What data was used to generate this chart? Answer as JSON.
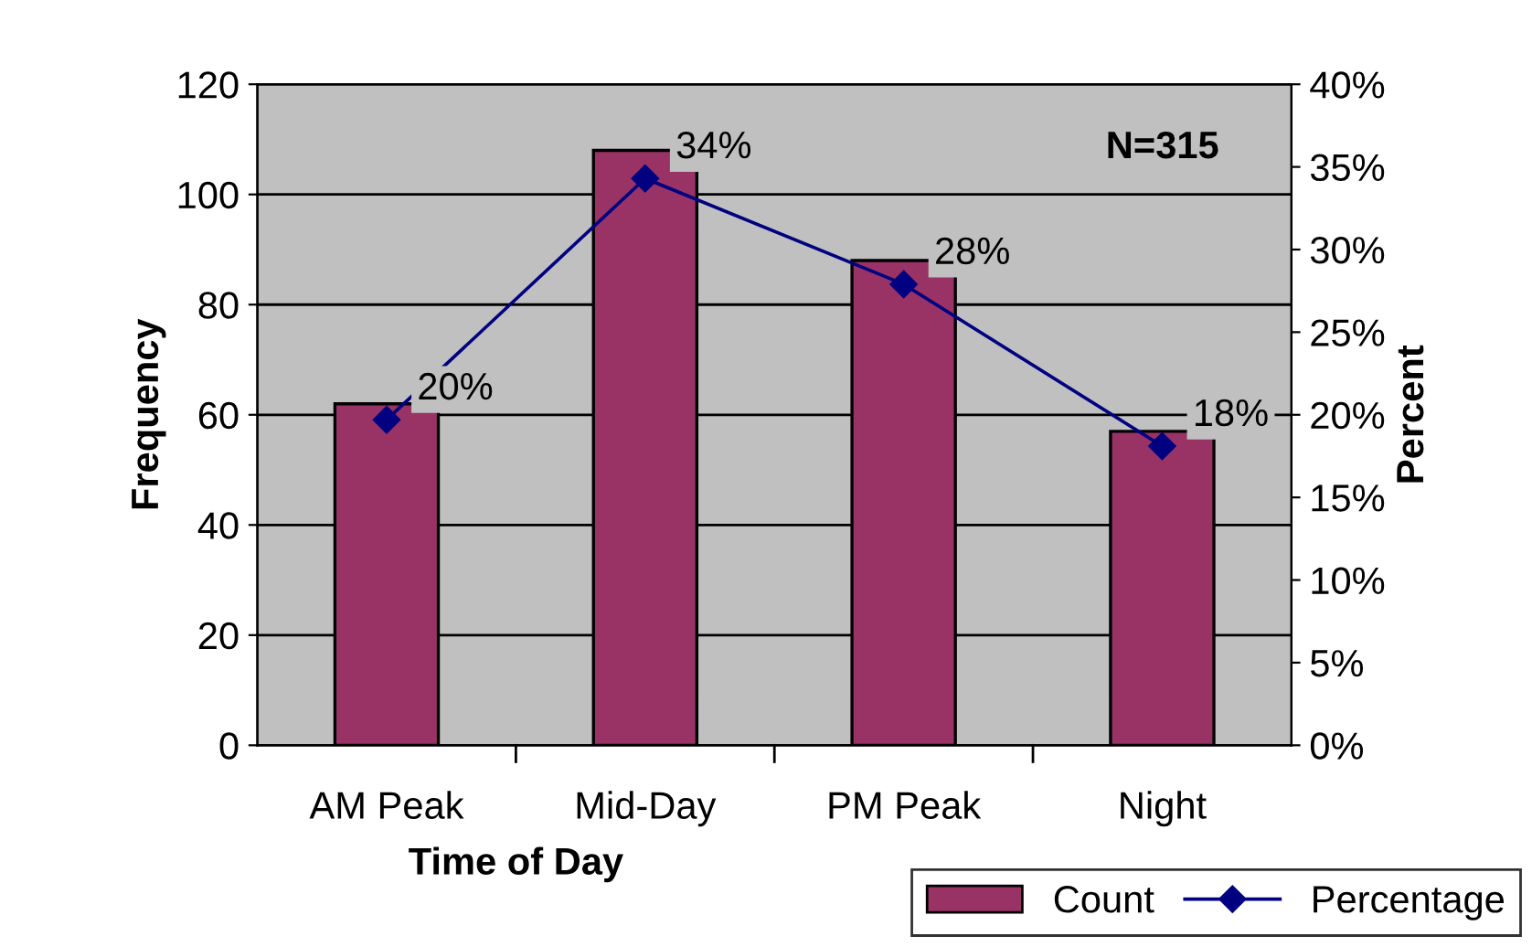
{
  "chart_data": {
    "type": "bar",
    "xlabel": "Time of Day",
    "ylabel": "Frequency",
    "y2label": "Percent",
    "categories": [
      "AM Peak",
      "Mid-Day",
      "PM Peak",
      "Night"
    ],
    "series": [
      {
        "name": "Count",
        "color": "#993366",
        "values": [
          62,
          108,
          88,
          57
        ]
      },
      {
        "name": "Percentage",
        "type": "line",
        "axis": "y2",
        "color": "#000080",
        "marker": "diamond",
        "values": [
          19.7,
          34.3,
          27.9,
          18.1
        ],
        "value_labels": [
          "20%",
          "34%",
          "28%",
          "18%"
        ]
      }
    ],
    "ylim": [
      0,
      120
    ],
    "yticks": [
      0,
      20,
      40,
      60,
      80,
      100,
      120
    ],
    "y2lim": [
      0,
      40
    ],
    "y2ticks": [
      {
        "value": 0,
        "label": "0%"
      },
      {
        "value": 5,
        "label": "5%"
      },
      {
        "value": 10,
        "label": "10%"
      },
      {
        "value": 15,
        "label": "15%"
      },
      {
        "value": 20,
        "label": "20%"
      },
      {
        "value": 25,
        "label": "25%"
      },
      {
        "value": 30,
        "label": "30%"
      },
      {
        "value": 35,
        "label": "35%"
      },
      {
        "value": 40,
        "label": "40%"
      }
    ],
    "annotations": [
      "N=315"
    ],
    "grid": "y",
    "legend": "bottom right"
  }
}
